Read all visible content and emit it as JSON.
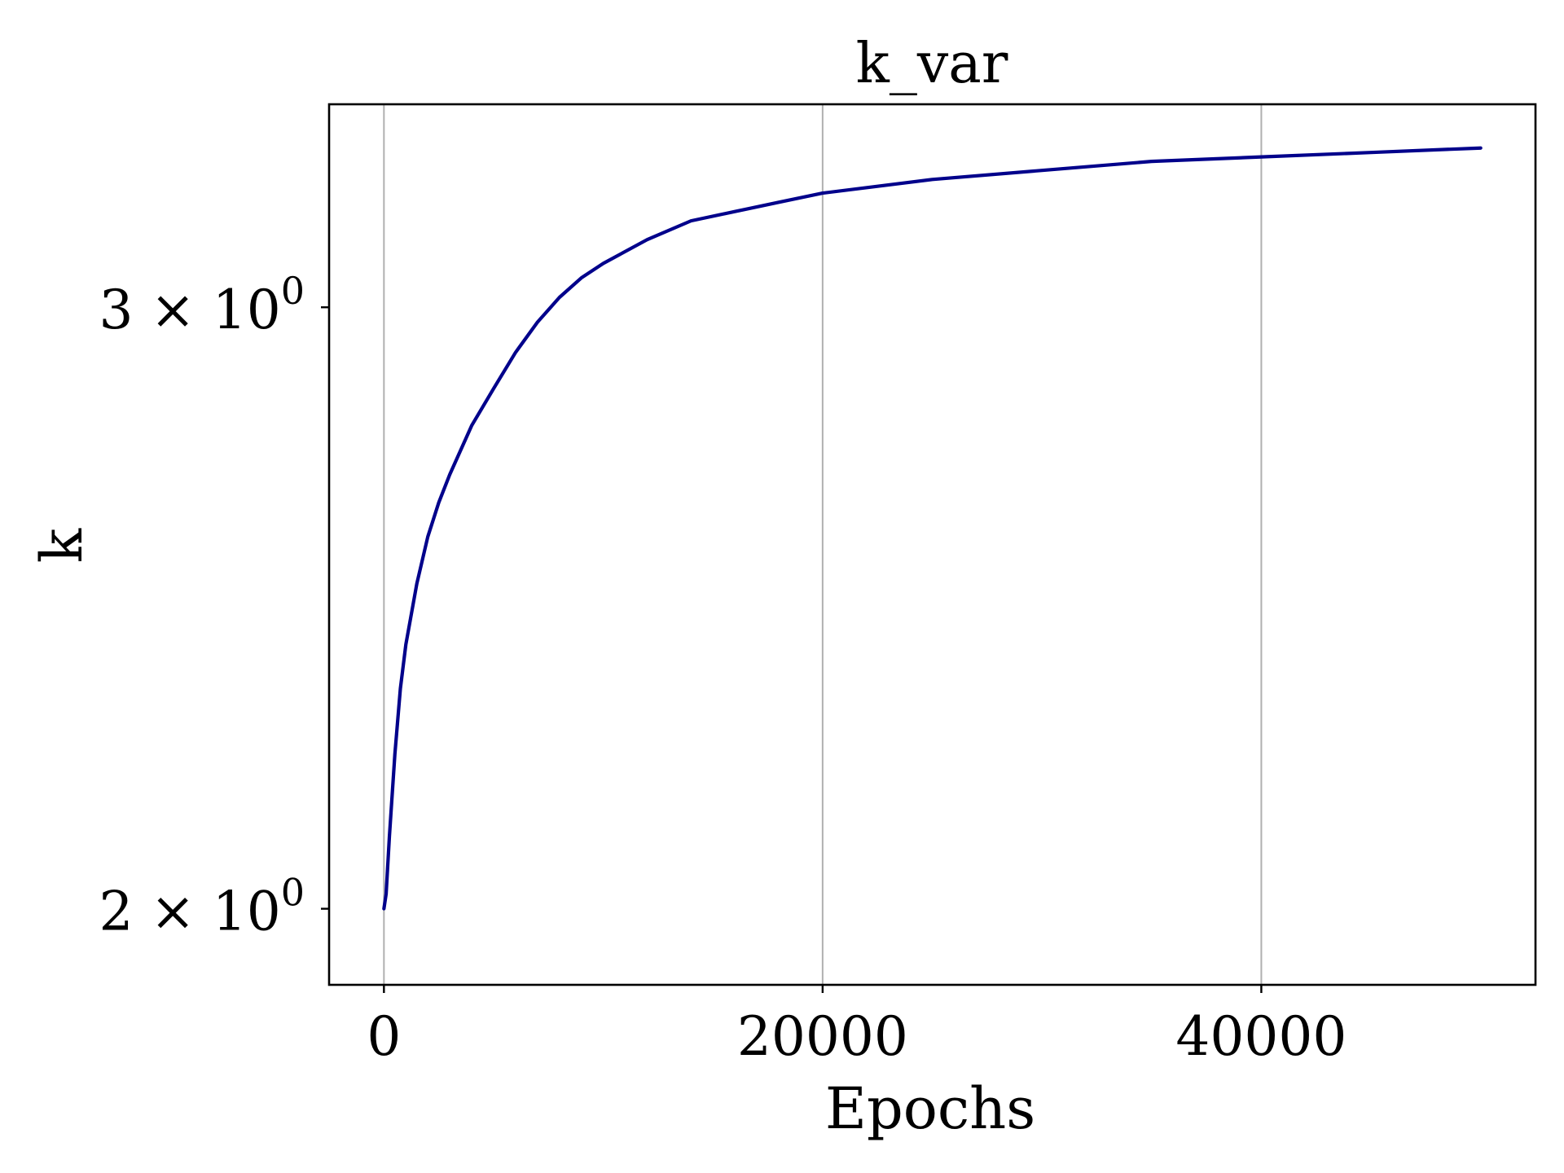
{
  "chart_data": {
    "type": "line",
    "title": "k_var",
    "xlabel": "Epochs",
    "ylabel": "k",
    "y_scale": "log",
    "grid": "x-major",
    "xlim": [
      -2500,
      52500
    ],
    "ylim": [
      1.9,
      3.44
    ],
    "x_ticks": [
      {
        "value": 0,
        "label": "0"
      },
      {
        "value": 20000,
        "label": "20000"
      },
      {
        "value": 40000,
        "label": "40000"
      }
    ],
    "y_ticks": [
      {
        "value": 2,
        "mantissa": "2",
        "times": "×",
        "base": "10",
        "exponent": "0"
      },
      {
        "value": 3,
        "mantissa": "3",
        "times": "×",
        "base": "10",
        "exponent": "0"
      }
    ],
    "colors": {
      "line": "#00008b",
      "grid": "#b0b0b0",
      "axes": "#000000"
    },
    "series": [
      {
        "values": [
          {
            "x": 0,
            "y": 2.0
          },
          {
            "x": 100,
            "y": 2.02
          },
          {
            "x": 250,
            "y": 2.1
          },
          {
            "x": 500,
            "y": 2.22
          },
          {
            "x": 750,
            "y": 2.32
          },
          {
            "x": 1000,
            "y": 2.39
          },
          {
            "x": 1500,
            "y": 2.49
          },
          {
            "x": 2000,
            "y": 2.57
          },
          {
            "x": 2500,
            "y": 2.63
          },
          {
            "x": 3000,
            "y": 2.68
          },
          {
            "x": 4000,
            "y": 2.77
          },
          {
            "x": 5000,
            "y": 2.84
          },
          {
            "x": 6000,
            "y": 2.91
          },
          {
            "x": 7000,
            "y": 2.97
          },
          {
            "x": 8000,
            "y": 3.02
          },
          {
            "x": 9000,
            "y": 3.06
          },
          {
            "x": 10000,
            "y": 3.09
          },
          {
            "x": 12000,
            "y": 3.14
          },
          {
            "x": 14000,
            "y": 3.18
          },
          {
            "x": 16000,
            "y": 3.2
          },
          {
            "x": 18000,
            "y": 3.22
          },
          {
            "x": 20000,
            "y": 3.24
          },
          {
            "x": 25000,
            "y": 3.27
          },
          {
            "x": 30000,
            "y": 3.29
          },
          {
            "x": 35000,
            "y": 3.31
          },
          {
            "x": 40000,
            "y": 3.32
          },
          {
            "x": 45000,
            "y": 3.33
          },
          {
            "x": 50000,
            "y": 3.34
          }
        ]
      }
    ]
  }
}
